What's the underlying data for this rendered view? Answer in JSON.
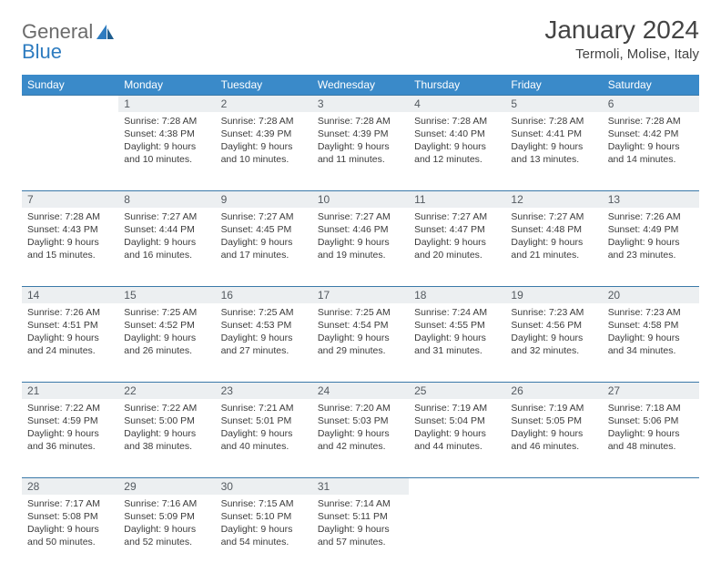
{
  "brand": {
    "part1": "General",
    "part2": "Blue"
  },
  "title": "January 2024",
  "location": "Termoli, Molise, Italy",
  "weekdays": [
    "Sunday",
    "Monday",
    "Tuesday",
    "Wednesday",
    "Thursday",
    "Friday",
    "Saturday"
  ],
  "colors": {
    "header_bg": "#3a8ac9",
    "header_text": "#ffffff",
    "daynum_bg": "#eceff1",
    "rule": "#3a79a8",
    "logo_blue": "#2e7cc0"
  },
  "weeks": [
    [
      {
        "n": "",
        "sr": "",
        "ss": "",
        "d1": "",
        "d2": ""
      },
      {
        "n": "1",
        "sr": "Sunrise: 7:28 AM",
        "ss": "Sunset: 4:38 PM",
        "d1": "Daylight: 9 hours",
        "d2": "and 10 minutes."
      },
      {
        "n": "2",
        "sr": "Sunrise: 7:28 AM",
        "ss": "Sunset: 4:39 PM",
        "d1": "Daylight: 9 hours",
        "d2": "and 10 minutes."
      },
      {
        "n": "3",
        "sr": "Sunrise: 7:28 AM",
        "ss": "Sunset: 4:39 PM",
        "d1": "Daylight: 9 hours",
        "d2": "and 11 minutes."
      },
      {
        "n": "4",
        "sr": "Sunrise: 7:28 AM",
        "ss": "Sunset: 4:40 PM",
        "d1": "Daylight: 9 hours",
        "d2": "and 12 minutes."
      },
      {
        "n": "5",
        "sr": "Sunrise: 7:28 AM",
        "ss": "Sunset: 4:41 PM",
        "d1": "Daylight: 9 hours",
        "d2": "and 13 minutes."
      },
      {
        "n": "6",
        "sr": "Sunrise: 7:28 AM",
        "ss": "Sunset: 4:42 PM",
        "d1": "Daylight: 9 hours",
        "d2": "and 14 minutes."
      }
    ],
    [
      {
        "n": "7",
        "sr": "Sunrise: 7:28 AM",
        "ss": "Sunset: 4:43 PM",
        "d1": "Daylight: 9 hours",
        "d2": "and 15 minutes."
      },
      {
        "n": "8",
        "sr": "Sunrise: 7:27 AM",
        "ss": "Sunset: 4:44 PM",
        "d1": "Daylight: 9 hours",
        "d2": "and 16 minutes."
      },
      {
        "n": "9",
        "sr": "Sunrise: 7:27 AM",
        "ss": "Sunset: 4:45 PM",
        "d1": "Daylight: 9 hours",
        "d2": "and 17 minutes."
      },
      {
        "n": "10",
        "sr": "Sunrise: 7:27 AM",
        "ss": "Sunset: 4:46 PM",
        "d1": "Daylight: 9 hours",
        "d2": "and 19 minutes."
      },
      {
        "n": "11",
        "sr": "Sunrise: 7:27 AM",
        "ss": "Sunset: 4:47 PM",
        "d1": "Daylight: 9 hours",
        "d2": "and 20 minutes."
      },
      {
        "n": "12",
        "sr": "Sunrise: 7:27 AM",
        "ss": "Sunset: 4:48 PM",
        "d1": "Daylight: 9 hours",
        "d2": "and 21 minutes."
      },
      {
        "n": "13",
        "sr": "Sunrise: 7:26 AM",
        "ss": "Sunset: 4:49 PM",
        "d1": "Daylight: 9 hours",
        "d2": "and 23 minutes."
      }
    ],
    [
      {
        "n": "14",
        "sr": "Sunrise: 7:26 AM",
        "ss": "Sunset: 4:51 PM",
        "d1": "Daylight: 9 hours",
        "d2": "and 24 minutes."
      },
      {
        "n": "15",
        "sr": "Sunrise: 7:25 AM",
        "ss": "Sunset: 4:52 PM",
        "d1": "Daylight: 9 hours",
        "d2": "and 26 minutes."
      },
      {
        "n": "16",
        "sr": "Sunrise: 7:25 AM",
        "ss": "Sunset: 4:53 PM",
        "d1": "Daylight: 9 hours",
        "d2": "and 27 minutes."
      },
      {
        "n": "17",
        "sr": "Sunrise: 7:25 AM",
        "ss": "Sunset: 4:54 PM",
        "d1": "Daylight: 9 hours",
        "d2": "and 29 minutes."
      },
      {
        "n": "18",
        "sr": "Sunrise: 7:24 AM",
        "ss": "Sunset: 4:55 PM",
        "d1": "Daylight: 9 hours",
        "d2": "and 31 minutes."
      },
      {
        "n": "19",
        "sr": "Sunrise: 7:23 AM",
        "ss": "Sunset: 4:56 PM",
        "d1": "Daylight: 9 hours",
        "d2": "and 32 minutes."
      },
      {
        "n": "20",
        "sr": "Sunrise: 7:23 AM",
        "ss": "Sunset: 4:58 PM",
        "d1": "Daylight: 9 hours",
        "d2": "and 34 minutes."
      }
    ],
    [
      {
        "n": "21",
        "sr": "Sunrise: 7:22 AM",
        "ss": "Sunset: 4:59 PM",
        "d1": "Daylight: 9 hours",
        "d2": "and 36 minutes."
      },
      {
        "n": "22",
        "sr": "Sunrise: 7:22 AM",
        "ss": "Sunset: 5:00 PM",
        "d1": "Daylight: 9 hours",
        "d2": "and 38 minutes."
      },
      {
        "n": "23",
        "sr": "Sunrise: 7:21 AM",
        "ss": "Sunset: 5:01 PM",
        "d1": "Daylight: 9 hours",
        "d2": "and 40 minutes."
      },
      {
        "n": "24",
        "sr": "Sunrise: 7:20 AM",
        "ss": "Sunset: 5:03 PM",
        "d1": "Daylight: 9 hours",
        "d2": "and 42 minutes."
      },
      {
        "n": "25",
        "sr": "Sunrise: 7:19 AM",
        "ss": "Sunset: 5:04 PM",
        "d1": "Daylight: 9 hours",
        "d2": "and 44 minutes."
      },
      {
        "n": "26",
        "sr": "Sunrise: 7:19 AM",
        "ss": "Sunset: 5:05 PM",
        "d1": "Daylight: 9 hours",
        "d2": "and 46 minutes."
      },
      {
        "n": "27",
        "sr": "Sunrise: 7:18 AM",
        "ss": "Sunset: 5:06 PM",
        "d1": "Daylight: 9 hours",
        "d2": "and 48 minutes."
      }
    ],
    [
      {
        "n": "28",
        "sr": "Sunrise: 7:17 AM",
        "ss": "Sunset: 5:08 PM",
        "d1": "Daylight: 9 hours",
        "d2": "and 50 minutes."
      },
      {
        "n": "29",
        "sr": "Sunrise: 7:16 AM",
        "ss": "Sunset: 5:09 PM",
        "d1": "Daylight: 9 hours",
        "d2": "and 52 minutes."
      },
      {
        "n": "30",
        "sr": "Sunrise: 7:15 AM",
        "ss": "Sunset: 5:10 PM",
        "d1": "Daylight: 9 hours",
        "d2": "and 54 minutes."
      },
      {
        "n": "31",
        "sr": "Sunrise: 7:14 AM",
        "ss": "Sunset: 5:11 PM",
        "d1": "Daylight: 9 hours",
        "d2": "and 57 minutes."
      },
      {
        "n": "",
        "sr": "",
        "ss": "",
        "d1": "",
        "d2": ""
      },
      {
        "n": "",
        "sr": "",
        "ss": "",
        "d1": "",
        "d2": ""
      },
      {
        "n": "",
        "sr": "",
        "ss": "",
        "d1": "",
        "d2": ""
      }
    ]
  ]
}
